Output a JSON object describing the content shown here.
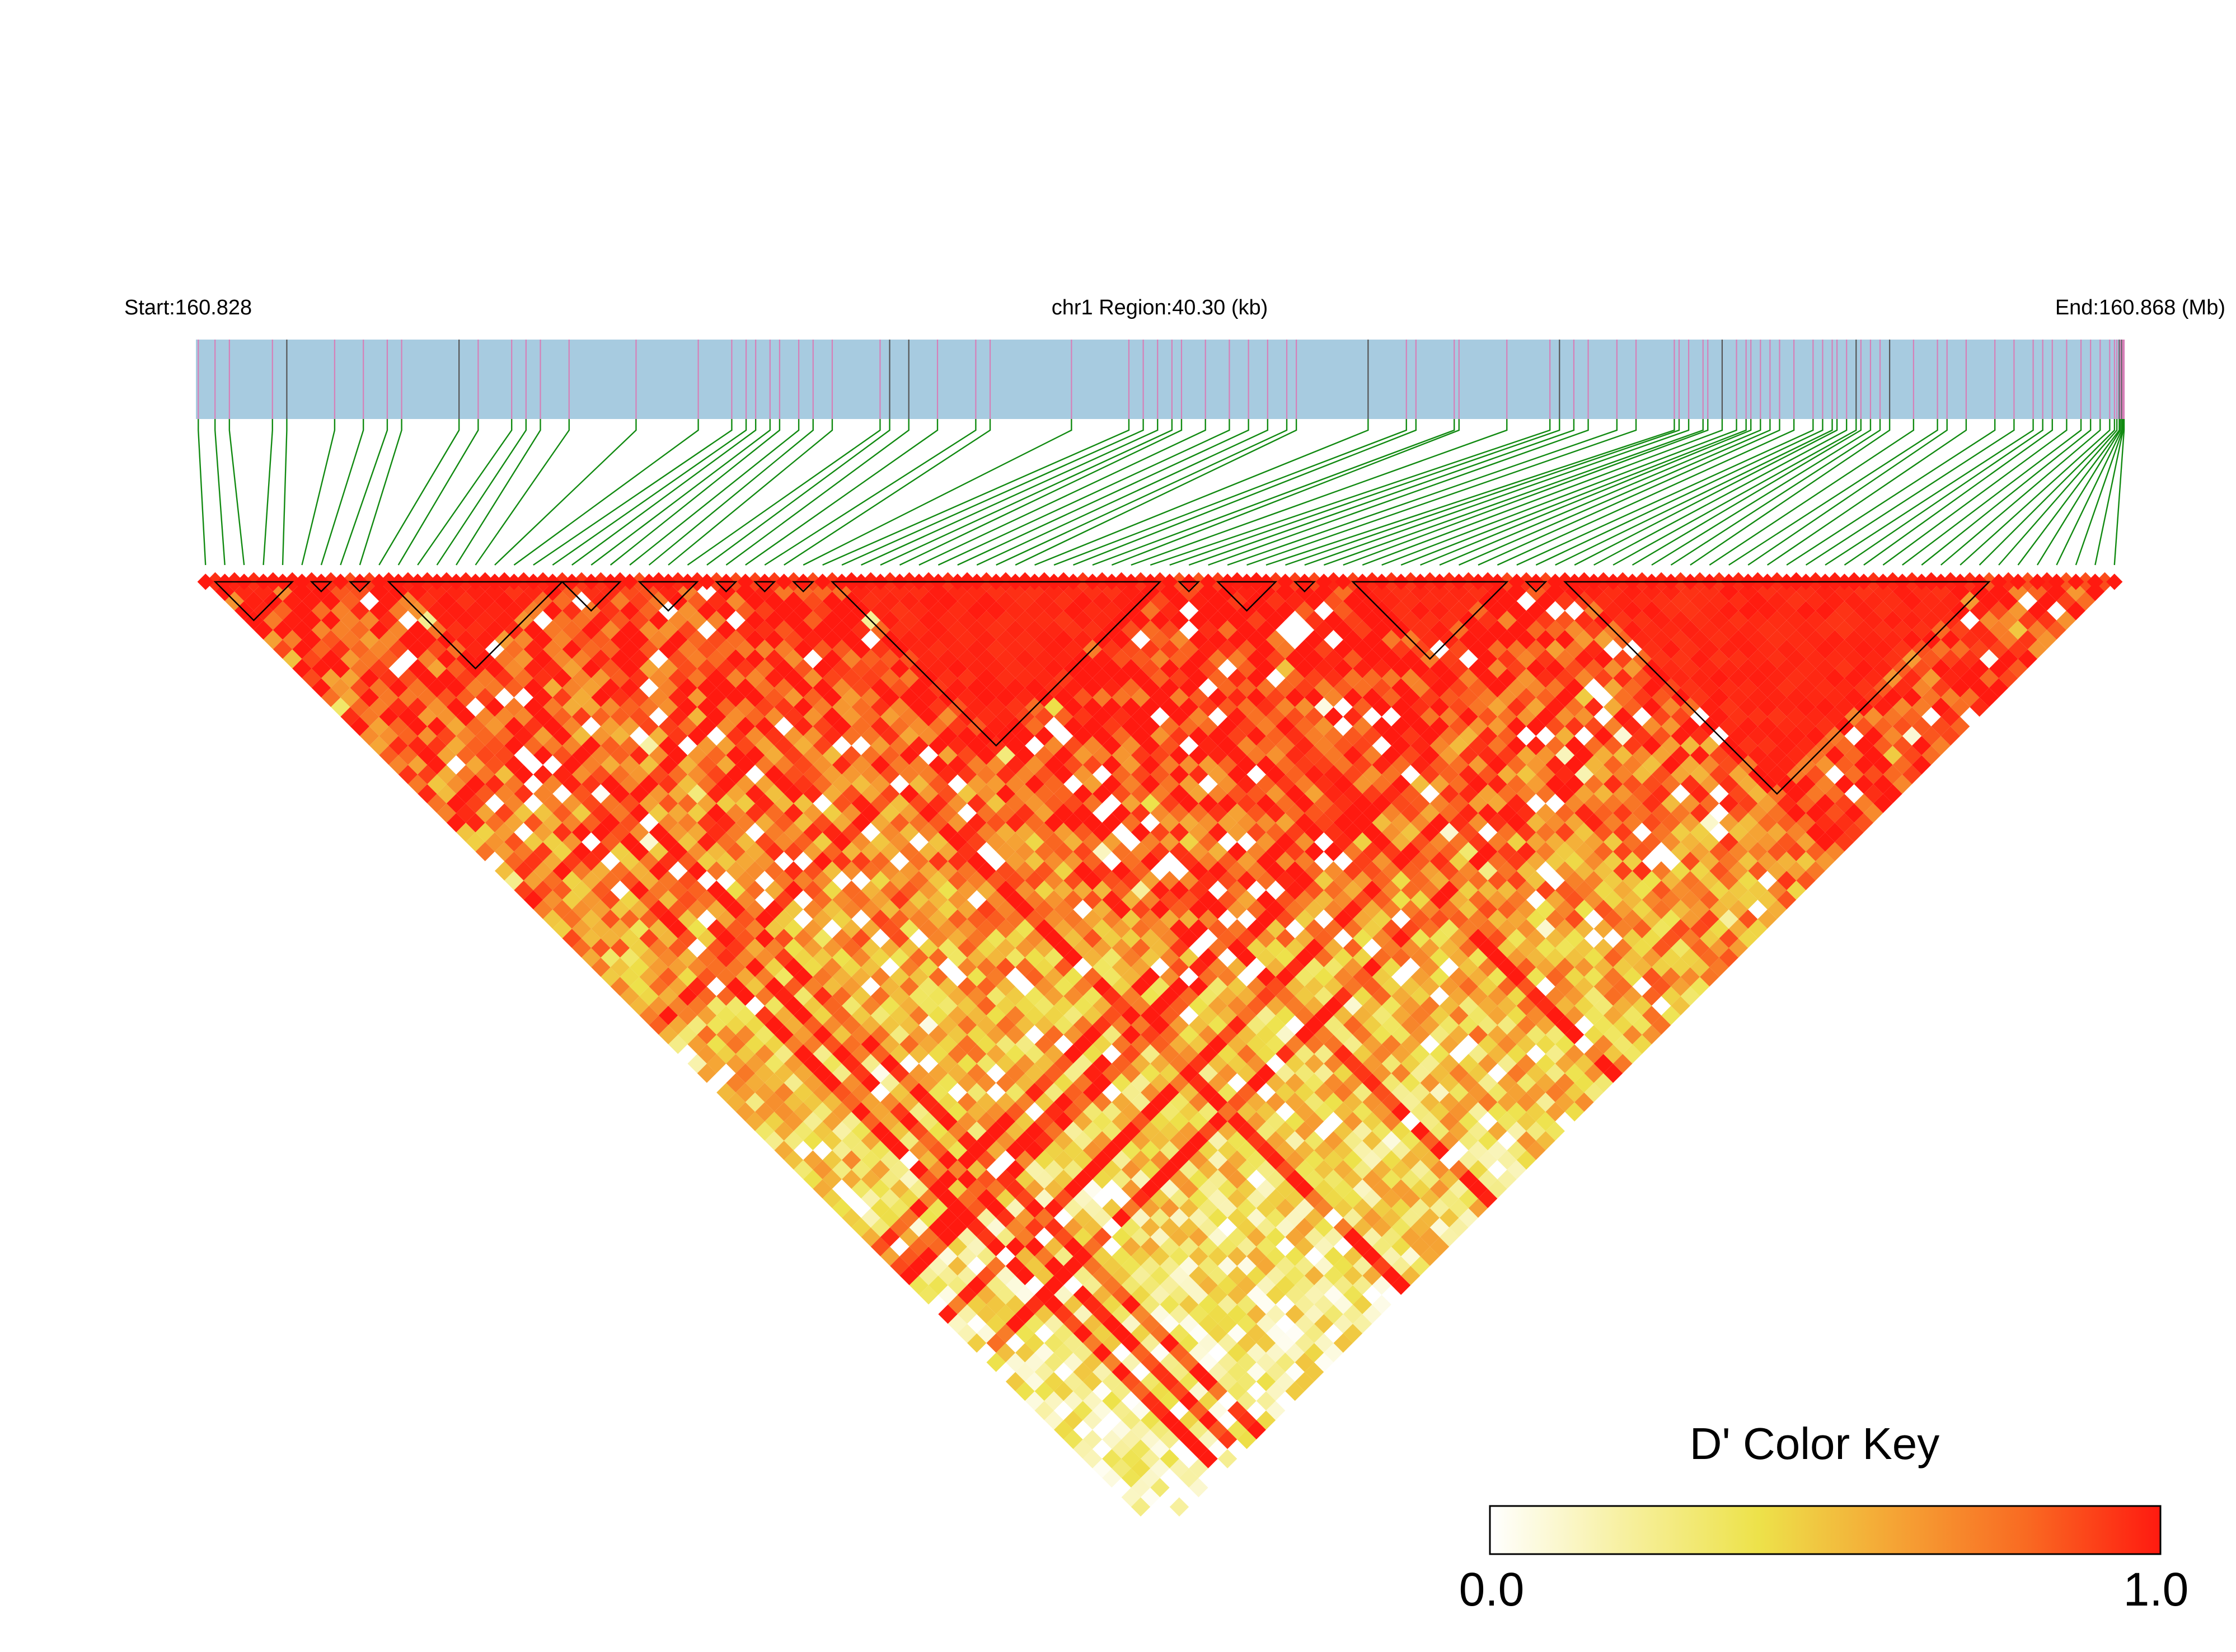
{
  "chart_data": {
    "type": "heatmap",
    "title": "",
    "header": {
      "start_label": "Start:160.828",
      "region_label": "chr1 Region:40.30 (kb)",
      "end_label": "End:160.868 (Mb)"
    },
    "region": {
      "chromosome": "chr1",
      "start_mb": 160.828,
      "end_mb": 160.868,
      "length_kb": 40.3
    },
    "snp_count": 100,
    "snp_positions_kb": [
      0.05,
      0.4,
      0.7,
      1.6,
      1.9,
      2.9,
      3.5,
      4.0,
      4.3,
      5.5,
      5.9,
      6.6,
      6.9,
      7.2,
      7.8,
      9.2,
      10.5,
      11.2,
      11.5,
      11.7,
      12.0,
      12.2,
      12.6,
      12.9,
      13.3,
      14.3,
      14.5,
      14.9,
      15.5,
      16.3,
      16.6,
      18.3,
      19.5,
      19.8,
      20.1,
      20.4,
      20.6,
      21.1,
      21.6,
      22.0,
      22.4,
      22.8,
      23.0,
      24.5,
      25.3,
      25.5,
      26.3,
      26.4,
      27.4,
      28.3,
      28.5,
      28.8,
      29.1,
      29.7,
      30.1,
      30.9,
      31.0,
      31.2,
      31.5,
      31.6,
      31.9,
      32.2,
      32.4,
      32.5,
      32.7,
      32.9,
      33.1,
      33.4,
      33.8,
      34.0,
      34.2,
      34.3,
      34.5,
      34.7,
      34.8,
      35.0,
      35.2,
      35.4,
      35.9,
      36.4,
      36.6,
      37.0,
      37.6,
      38.0,
      38.4,
      38.6,
      38.8,
      39.1,
      39.4,
      39.6,
      39.8,
      40.0,
      40.1,
      40.15,
      40.2,
      40.22,
      40.25,
      40.27,
      40.28,
      40.3
    ],
    "ld_blocks": [
      {
        "start": 1,
        "end": 4
      },
      {
        "start": 6,
        "end": 6
      },
      {
        "start": 8,
        "end": 8
      },
      {
        "start": 10,
        "end": 18
      },
      {
        "start": 19,
        "end": 21
      },
      {
        "start": 23,
        "end": 25
      },
      {
        "start": 27,
        "end": 27
      },
      {
        "start": 29,
        "end": 29
      },
      {
        "start": 31,
        "end": 31
      },
      {
        "start": 33,
        "end": 49
      },
      {
        "start": 51,
        "end": 51
      },
      {
        "start": 53,
        "end": 55
      },
      {
        "start": 57,
        "end": 57
      },
      {
        "start": 60,
        "end": 67
      },
      {
        "start": 69,
        "end": 69
      },
      {
        "start": 71,
        "end": 92
      }
    ],
    "color_key": {
      "title": "D' Color Key",
      "min_label": "0.0",
      "max_label": "1.0",
      "min": 0.0,
      "max": 1.0,
      "gradient": [
        "#ffffff",
        "#f7f0a0",
        "#ede24a",
        "#f5a535",
        "#f96a22",
        "#ff1a10"
      ]
    }
  },
  "colors": {
    "track_fill": "#a7cbe0",
    "snp_tick_pink": "#d680b8",
    "snp_tick_dark": "#555555",
    "connector_green": "#118a11",
    "block_outline": "#000000"
  }
}
